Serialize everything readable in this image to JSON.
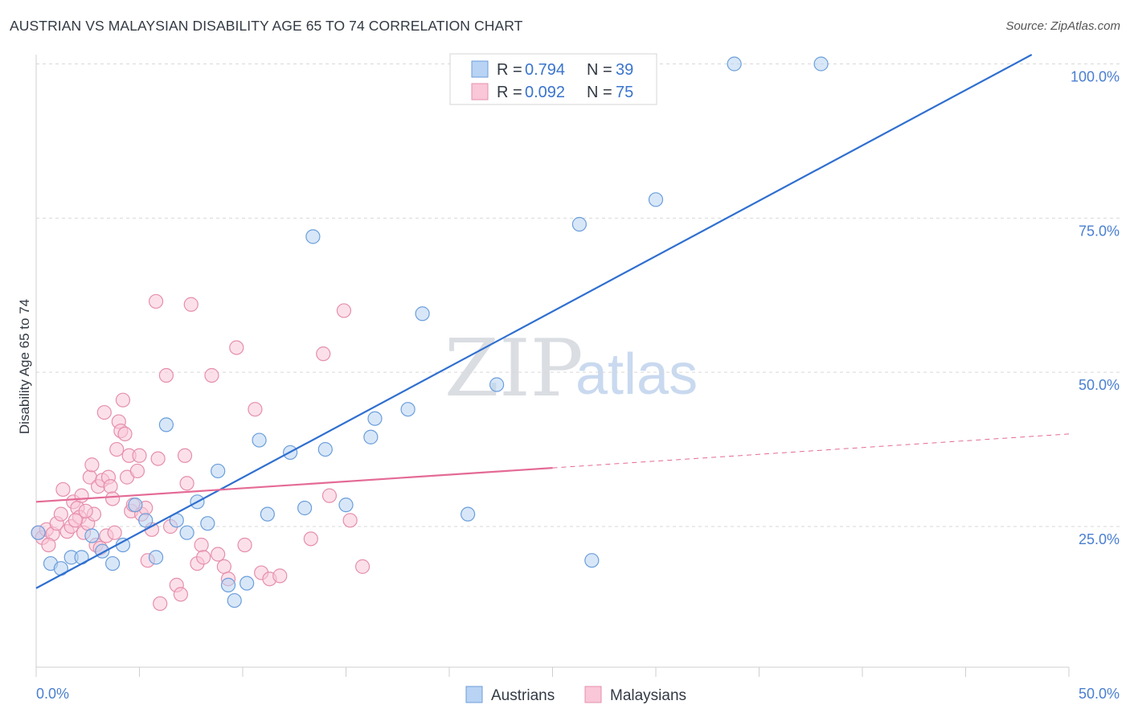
{
  "header": {
    "title": "AUSTRIAN VS MALAYSIAN DISABILITY AGE 65 TO 74 CORRELATION CHART",
    "source": "Source: ZipAtlas.com"
  },
  "watermark": {
    "zip": "ZIP",
    "atlas": "atlas"
  },
  "colors": {
    "austrian_fill": "#b8d3f3",
    "austrian_stroke": "#6b9edb",
    "austrian_line": "#2f6fd0",
    "malaysian_fill": "#f9c7d7",
    "malaysian_stroke": "#e58fac",
    "malaysian_line": "#e46a96",
    "axis_text": "#4a7fd0"
  },
  "legend": {
    "rows": [
      {
        "r_label": "R = ",
        "r_value": "0.794",
        "n_label": "N = ",
        "n_value": "39"
      },
      {
        "r_label": "R = ",
        "r_value": "0.092",
        "n_label": "N = ",
        "n_value": "75"
      }
    ]
  },
  "bottom_legend": {
    "austrians": "Austrians",
    "malaysians": "Malaysians"
  },
  "chart_data": {
    "type": "scatter",
    "title": "AUSTRIAN VS MALAYSIAN DISABILITY AGE 65 TO 74 CORRELATION CHART",
    "xlabel": "",
    "ylabel": "Disability Age 65 to 74",
    "xlim": [
      0,
      50
    ],
    "ylim": [
      0,
      102
    ],
    "x_tick_labels": [
      "0.0%",
      "50.0%"
    ],
    "y_ticks": [
      {
        "value": 25,
        "label": "25.0%"
      },
      {
        "value": 50,
        "label": "50.0%"
      },
      {
        "value": 75,
        "label": "75.0%"
      },
      {
        "value": 100,
        "label": "100.0%"
      }
    ],
    "grid": true,
    "legend_position": "top-center",
    "series": [
      {
        "name": "Austrians",
        "r": 0.794,
        "n": 39,
        "trend": {
          "x0": 0,
          "y0": 15.0,
          "x1": 48.2,
          "y1": 101.5,
          "dashed_from": null
        },
        "points": [
          [
            0.1,
            24.0
          ],
          [
            0.7,
            19.0
          ],
          [
            1.2,
            18.2
          ],
          [
            1.7,
            20.0
          ],
          [
            2.2,
            20.0
          ],
          [
            2.7,
            23.5
          ],
          [
            3.2,
            21.0
          ],
          [
            3.7,
            19.0
          ],
          [
            4.2,
            22.0
          ],
          [
            4.8,
            28.5
          ],
          [
            5.3,
            26.0
          ],
          [
            5.8,
            20.0
          ],
          [
            6.3,
            41.5
          ],
          [
            6.8,
            26.0
          ],
          [
            7.3,
            24.0
          ],
          [
            7.8,
            29.0
          ],
          [
            8.3,
            25.5
          ],
          [
            8.8,
            34.0
          ],
          [
            9.3,
            15.5
          ],
          [
            9.6,
            13.0
          ],
          [
            10.2,
            15.8
          ],
          [
            10.8,
            39.0
          ],
          [
            11.2,
            27.0
          ],
          [
            12.3,
            37.0
          ],
          [
            13.0,
            28.0
          ],
          [
            13.4,
            72.0
          ],
          [
            14.0,
            37.5
          ],
          [
            15.0,
            28.5
          ],
          [
            16.2,
            39.5
          ],
          [
            16.4,
            42.5
          ],
          [
            18.0,
            44.0
          ],
          [
            18.7,
            59.5
          ],
          [
            20.9,
            27.0
          ],
          [
            22.3,
            48.0
          ],
          [
            26.3,
            74.0
          ],
          [
            26.9,
            19.5
          ],
          [
            30.0,
            78.0
          ],
          [
            33.8,
            100.0
          ],
          [
            38.0,
            100.0
          ]
        ]
      },
      {
        "name": "Malaysians",
        "r": 0.092,
        "n": 75,
        "trend": {
          "x0": 0,
          "y0": 29.0,
          "x1": 50,
          "y1": 40.0,
          "dashed_from": 25.0
        },
        "points": [
          [
            0.1,
            24.0
          ],
          [
            0.3,
            23.2
          ],
          [
            0.5,
            24.5
          ],
          [
            0.8,
            23.8
          ],
          [
            1.0,
            25.5
          ],
          [
            1.2,
            27.0
          ],
          [
            1.3,
            31.0
          ],
          [
            1.5,
            24.2
          ],
          [
            1.7,
            25.0
          ],
          [
            1.8,
            29.0
          ],
          [
            2.0,
            28.0
          ],
          [
            2.1,
            26.5
          ],
          [
            2.2,
            30.0
          ],
          [
            2.3,
            24.0
          ],
          [
            2.5,
            25.5
          ],
          [
            2.6,
            33.0
          ],
          [
            2.7,
            35.0
          ],
          [
            2.8,
            27.0
          ],
          [
            2.9,
            22.0
          ],
          [
            3.0,
            31.5
          ],
          [
            3.2,
            32.5
          ],
          [
            3.3,
            43.5
          ],
          [
            3.4,
            23.5
          ],
          [
            3.5,
            33.0
          ],
          [
            3.6,
            31.5
          ],
          [
            3.8,
            24.0
          ],
          [
            3.9,
            37.5
          ],
          [
            4.0,
            42.0
          ],
          [
            4.1,
            40.5
          ],
          [
            4.2,
            45.5
          ],
          [
            4.3,
            40.0
          ],
          [
            4.4,
            33.0
          ],
          [
            4.5,
            36.5
          ],
          [
            4.6,
            27.5
          ],
          [
            4.7,
            28.5
          ],
          [
            4.9,
            34.0
          ],
          [
            5.0,
            36.5
          ],
          [
            5.1,
            27.0
          ],
          [
            5.3,
            28.0
          ],
          [
            5.4,
            19.5
          ],
          [
            5.6,
            24.5
          ],
          [
            5.8,
            61.5
          ],
          [
            5.9,
            36.0
          ],
          [
            6.0,
            12.5
          ],
          [
            6.3,
            49.5
          ],
          [
            6.8,
            15.5
          ],
          [
            7.0,
            14.0
          ],
          [
            7.2,
            36.5
          ],
          [
            7.3,
            32.0
          ],
          [
            7.5,
            61.0
          ],
          [
            7.8,
            19.0
          ],
          [
            8.0,
            22.0
          ],
          [
            8.1,
            20.0
          ],
          [
            8.5,
            49.5
          ],
          [
            8.8,
            20.5
          ],
          [
            9.1,
            18.5
          ],
          [
            9.3,
            16.5
          ],
          [
            9.7,
            54.0
          ],
          [
            10.1,
            22.0
          ],
          [
            10.6,
            44.0
          ],
          [
            10.9,
            17.5
          ],
          [
            11.3,
            16.5
          ],
          [
            11.8,
            17.0
          ],
          [
            13.3,
            23.0
          ],
          [
            13.9,
            53.0
          ],
          [
            14.2,
            30.0
          ],
          [
            14.9,
            60.0
          ],
          [
            15.2,
            26.0
          ],
          [
            15.8,
            18.5
          ],
          [
            3.1,
            21.5
          ],
          [
            2.4,
            27.5
          ],
          [
            1.9,
            26.0
          ],
          [
            3.7,
            29.5
          ],
          [
            6.5,
            25.0
          ],
          [
            0.6,
            22.0
          ]
        ]
      }
    ]
  }
}
